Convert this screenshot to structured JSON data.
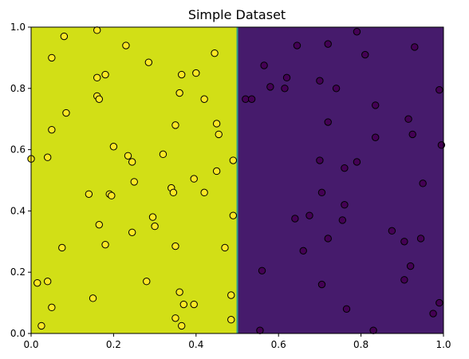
{
  "chart_data": {
    "type": "scatter",
    "title": "Simple Dataset",
    "xlabel": "",
    "ylabel": "",
    "xlim": [
      0,
      1
    ],
    "ylim": [
      0,
      1
    ],
    "grid": false,
    "x_ticks": [
      "0.0",
      "0.2",
      "0.4",
      "0.6",
      "0.8",
      "1.0"
    ],
    "y_ticks": [
      "0.0",
      "0.2",
      "0.4",
      "0.6",
      "0.8",
      "1.0"
    ],
    "decision_boundary_x": 0.5,
    "region_colors": {
      "left": "#d2df16",
      "right": "#461b6c",
      "boundary": "#2fa08a"
    },
    "marker_colors": {
      "class_1": "#fde725",
      "class_0": "#440154",
      "edge": "#000000"
    },
    "series": [
      {
        "class": 1,
        "points": [
          [
            0.0,
            0.57
          ],
          [
            0.04,
            0.575
          ],
          [
            0.08,
            0.97
          ],
          [
            0.16,
            0.99
          ],
          [
            0.23,
            0.94
          ],
          [
            0.05,
            0.9
          ],
          [
            0.285,
            0.885
          ],
          [
            0.445,
            0.915
          ],
          [
            0.18,
            0.845
          ],
          [
            0.16,
            0.835
          ],
          [
            0.365,
            0.845
          ],
          [
            0.4,
            0.85
          ],
          [
            0.36,
            0.785
          ],
          [
            0.16,
            0.775
          ],
          [
            0.165,
            0.765
          ],
          [
            0.42,
            0.765
          ],
          [
            0.085,
            0.72
          ],
          [
            0.05,
            0.665
          ],
          [
            0.35,
            0.68
          ],
          [
            0.45,
            0.685
          ],
          [
            0.455,
            0.65
          ],
          [
            0.2,
            0.61
          ],
          [
            0.32,
            0.585
          ],
          [
            0.235,
            0.58
          ],
          [
            0.245,
            0.56
          ],
          [
            0.49,
            0.565
          ],
          [
            0.45,
            0.53
          ],
          [
            0.25,
            0.495
          ],
          [
            0.395,
            0.505
          ],
          [
            0.34,
            0.475
          ],
          [
            0.345,
            0.46
          ],
          [
            0.42,
            0.46
          ],
          [
            0.14,
            0.455
          ],
          [
            0.19,
            0.455
          ],
          [
            0.195,
            0.45
          ],
          [
            0.49,
            0.385
          ],
          [
            0.295,
            0.38
          ],
          [
            0.3,
            0.35
          ],
          [
            0.165,
            0.355
          ],
          [
            0.245,
            0.33
          ],
          [
            0.075,
            0.28
          ],
          [
            0.18,
            0.29
          ],
          [
            0.35,
            0.285
          ],
          [
            0.47,
            0.28
          ],
          [
            0.04,
            0.17
          ],
          [
            0.015,
            0.165
          ],
          [
            0.28,
            0.17
          ],
          [
            0.15,
            0.115
          ],
          [
            0.36,
            0.135
          ],
          [
            0.485,
            0.125
          ],
          [
            0.05,
            0.085
          ],
          [
            0.37,
            0.095
          ],
          [
            0.395,
            0.095
          ],
          [
            0.35,
            0.05
          ],
          [
            0.485,
            0.045
          ],
          [
            0.025,
            0.025
          ],
          [
            0.365,
            0.025
          ]
        ]
      },
      {
        "class": 0,
        "points": [
          [
            0.645,
            0.94
          ],
          [
            0.72,
            0.945
          ],
          [
            0.79,
            0.985
          ],
          [
            0.81,
            0.91
          ],
          [
            0.93,
            0.935
          ],
          [
            0.565,
            0.875
          ],
          [
            0.62,
            0.835
          ],
          [
            0.52,
            0.765
          ],
          [
            0.535,
            0.765
          ],
          [
            0.58,
            0.805
          ],
          [
            0.615,
            0.8
          ],
          [
            0.7,
            0.825
          ],
          [
            0.74,
            0.8
          ],
          [
            0.99,
            0.795
          ],
          [
            0.835,
            0.745
          ],
          [
            0.915,
            0.7
          ],
          [
            0.72,
            0.69
          ],
          [
            0.925,
            0.65
          ],
          [
            0.835,
            0.64
          ],
          [
            0.995,
            0.615
          ],
          [
            0.7,
            0.565
          ],
          [
            0.76,
            0.54
          ],
          [
            0.79,
            0.56
          ],
          [
            0.95,
            0.49
          ],
          [
            0.705,
            0.46
          ],
          [
            0.76,
            0.42
          ],
          [
            0.64,
            0.375
          ],
          [
            0.675,
            0.385
          ],
          [
            0.755,
            0.37
          ],
          [
            0.72,
            0.31
          ],
          [
            0.875,
            0.335
          ],
          [
            0.905,
            0.3
          ],
          [
            0.945,
            0.31
          ],
          [
            0.66,
            0.27
          ],
          [
            0.56,
            0.205
          ],
          [
            0.92,
            0.22
          ],
          [
            0.905,
            0.175
          ],
          [
            0.705,
            0.16
          ],
          [
            0.99,
            0.1
          ],
          [
            0.765,
            0.08
          ],
          [
            0.975,
            0.065
          ],
          [
            0.555,
            0.01
          ],
          [
            0.83,
            0.01
          ]
        ]
      }
    ]
  }
}
